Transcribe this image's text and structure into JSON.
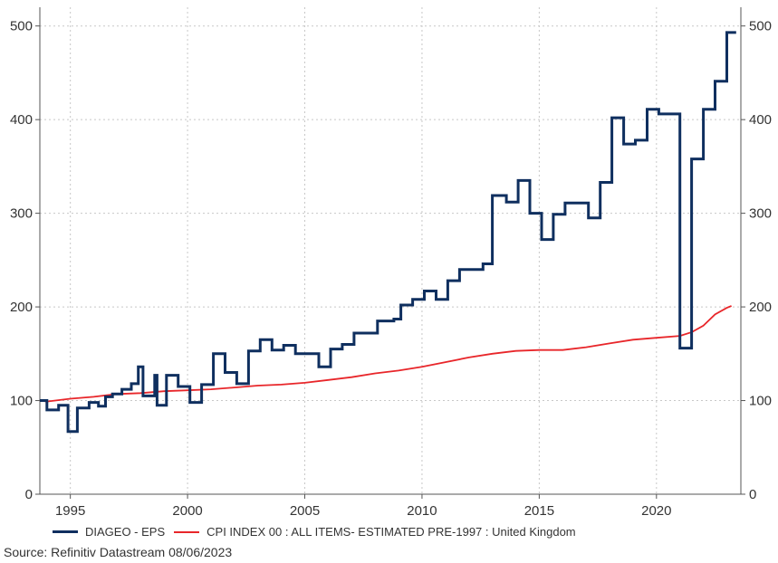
{
  "chart_data": {
    "type": "line",
    "x_ticks": [
      "1995",
      "2000",
      "2005",
      "2010",
      "2015",
      "2020"
    ],
    "y_ticks": [
      "0",
      "100",
      "200",
      "300",
      "400",
      "500"
    ],
    "ylim": [
      0,
      520
    ],
    "xlim": [
      1993.7,
      2023.6
    ],
    "grid": true,
    "legend_position": "bottom",
    "series": [
      {
        "name": "DIAGEO - EPS",
        "color": "#0f2f5f",
        "points": [
          [
            1993.7,
            100
          ],
          [
            1994.0,
            100
          ],
          [
            1994.0,
            90
          ],
          [
            1994.5,
            90
          ],
          [
            1994.5,
            95
          ],
          [
            1994.9,
            95
          ],
          [
            1994.9,
            67
          ],
          [
            1995.3,
            67
          ],
          [
            1995.3,
            92
          ],
          [
            1995.8,
            92
          ],
          [
            1995.8,
            98
          ],
          [
            1996.2,
            98
          ],
          [
            1996.2,
            94
          ],
          [
            1996.5,
            94
          ],
          [
            1996.5,
            104
          ],
          [
            1996.8,
            104
          ],
          [
            1996.8,
            107
          ],
          [
            1997.2,
            107
          ],
          [
            1997.2,
            112
          ],
          [
            1997.6,
            112
          ],
          [
            1997.6,
            118
          ],
          [
            1997.9,
            118
          ],
          [
            1997.9,
            136
          ],
          [
            1998.1,
            136
          ],
          [
            1998.1,
            105
          ],
          [
            1998.6,
            105
          ],
          [
            1998.6,
            127
          ],
          [
            1998.7,
            127
          ],
          [
            1998.7,
            95
          ],
          [
            1999.1,
            95
          ],
          [
            1999.1,
            127
          ],
          [
            1999.6,
            127
          ],
          [
            1999.6,
            115
          ],
          [
            2000.1,
            115
          ],
          [
            2000.1,
            98
          ],
          [
            2000.6,
            98
          ],
          [
            2000.6,
            117
          ],
          [
            2001.1,
            117
          ],
          [
            2001.1,
            150
          ],
          [
            2001.6,
            150
          ],
          [
            2001.6,
            130
          ],
          [
            2002.1,
            130
          ],
          [
            2002.1,
            118
          ],
          [
            2002.6,
            118
          ],
          [
            2002.6,
            153
          ],
          [
            2003.1,
            153
          ],
          [
            2003.1,
            165
          ],
          [
            2003.6,
            165
          ],
          [
            2003.6,
            154
          ],
          [
            2004.1,
            154
          ],
          [
            2004.1,
            159
          ],
          [
            2004.6,
            159
          ],
          [
            2004.6,
            150
          ],
          [
            2005.6,
            150
          ],
          [
            2005.6,
            136
          ],
          [
            2006.1,
            136
          ],
          [
            2006.1,
            155
          ],
          [
            2006.6,
            155
          ],
          [
            2006.6,
            160
          ],
          [
            2007.1,
            160
          ],
          [
            2007.1,
            172
          ],
          [
            2008.1,
            172
          ],
          [
            2008.1,
            185
          ],
          [
            2008.8,
            185
          ],
          [
            2008.8,
            187
          ],
          [
            2009.1,
            187
          ],
          [
            2009.1,
            202
          ],
          [
            2009.6,
            202
          ],
          [
            2009.6,
            208
          ],
          [
            2010.1,
            208
          ],
          [
            2010.1,
            217
          ],
          [
            2010.6,
            217
          ],
          [
            2010.6,
            208
          ],
          [
            2011.1,
            208
          ],
          [
            2011.1,
            228
          ],
          [
            2011.6,
            228
          ],
          [
            2011.6,
            240
          ],
          [
            2012.6,
            240
          ],
          [
            2012.6,
            246
          ],
          [
            2013.0,
            246
          ],
          [
            2013.0,
            319
          ],
          [
            2013.6,
            319
          ],
          [
            2013.6,
            312
          ],
          [
            2014.1,
            312
          ],
          [
            2014.1,
            335
          ],
          [
            2014.6,
            335
          ],
          [
            2014.6,
            300
          ],
          [
            2015.1,
            300
          ],
          [
            2015.1,
            272
          ],
          [
            2015.6,
            272
          ],
          [
            2015.6,
            299
          ],
          [
            2016.1,
            299
          ],
          [
            2016.1,
            311
          ],
          [
            2017.1,
            311
          ],
          [
            2017.1,
            295
          ],
          [
            2017.6,
            295
          ],
          [
            2017.6,
            333
          ],
          [
            2018.1,
            333
          ],
          [
            2018.1,
            402
          ],
          [
            2018.6,
            402
          ],
          [
            2018.6,
            374
          ],
          [
            2019.1,
            374
          ],
          [
            2019.1,
            378
          ],
          [
            2019.6,
            378
          ],
          [
            2019.6,
            411
          ],
          [
            2020.1,
            411
          ],
          [
            2020.1,
            406
          ],
          [
            2021.0,
            406
          ],
          [
            2021.0,
            156
          ],
          [
            2021.5,
            156
          ],
          [
            2021.5,
            358
          ],
          [
            2022.0,
            358
          ],
          [
            2022.0,
            411
          ],
          [
            2022.5,
            411
          ],
          [
            2022.5,
            441
          ],
          [
            2023.0,
            441
          ],
          [
            2023.0,
            493
          ],
          [
            2023.4,
            493
          ]
        ]
      },
      {
        "name": "CPI INDEX 00 : ALL ITEMS- ESTIMATED PRE-1997 : United Kingdom",
        "color": "#e8262a",
        "points": [
          [
            1993.7,
            100
          ],
          [
            1994.0,
            99
          ],
          [
            1995.0,
            102
          ],
          [
            1996.0,
            104
          ],
          [
            1997.0,
            107
          ],
          [
            1998.0,
            108
          ],
          [
            1999.0,
            110
          ],
          [
            2000.0,
            111
          ],
          [
            2001.0,
            112
          ],
          [
            2002.0,
            114
          ],
          [
            2003.0,
            116
          ],
          [
            2004.0,
            117
          ],
          [
            2005.0,
            119
          ],
          [
            2006.0,
            122
          ],
          [
            2007.0,
            125
          ],
          [
            2008.0,
            129
          ],
          [
            2009.0,
            132
          ],
          [
            2010.0,
            136
          ],
          [
            2011.0,
            141
          ],
          [
            2012.0,
            146
          ],
          [
            2013.0,
            150
          ],
          [
            2014.0,
            153
          ],
          [
            2015.0,
            154
          ],
          [
            2016.0,
            154
          ],
          [
            2017.0,
            157
          ],
          [
            2018.0,
            161
          ],
          [
            2019.0,
            165
          ],
          [
            2020.0,
            167
          ],
          [
            2021.0,
            169
          ],
          [
            2021.5,
            173
          ],
          [
            2022.0,
            180
          ],
          [
            2022.5,
            192
          ],
          [
            2023.0,
            199
          ],
          [
            2023.2,
            201
          ]
        ]
      }
    ]
  },
  "source_text": "Source: Refinitiv Datastream 08/06/2023"
}
